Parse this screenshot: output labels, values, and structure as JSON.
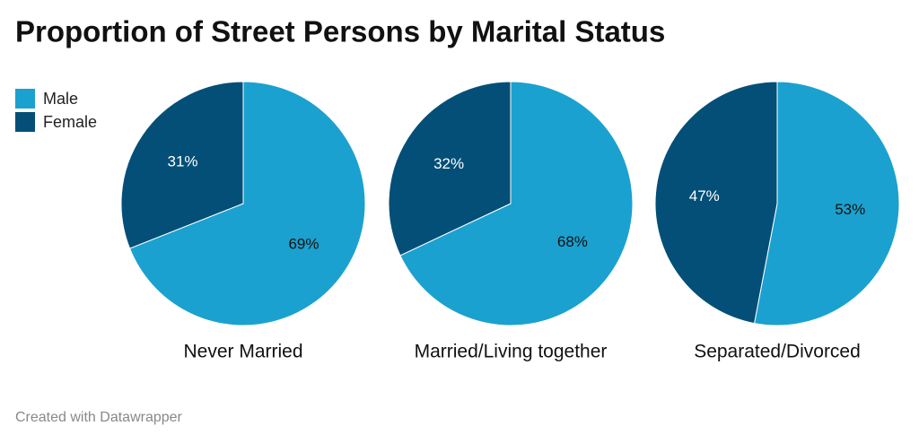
{
  "title": "Proportion of Street Persons by Marital Status",
  "footer": "Created with Datawrapper",
  "legend": {
    "labels": [
      "Male",
      "Female"
    ],
    "colors": [
      "#1ba1cf",
      "#034f77"
    ],
    "position": "top-left"
  },
  "chart_data": [
    {
      "type": "pie",
      "label": "Never Married",
      "values": [
        69,
        31
      ],
      "value_labels": [
        "69%",
        "31%"
      ]
    },
    {
      "type": "pie",
      "label": "Married/Living together",
      "values": [
        68,
        32
      ],
      "value_labels": [
        "68%",
        "32%"
      ]
    },
    {
      "type": "pie",
      "label": "Separated/Divorced",
      "values": [
        53,
        47
      ],
      "value_labels": [
        "53%",
        "47%"
      ]
    }
  ]
}
